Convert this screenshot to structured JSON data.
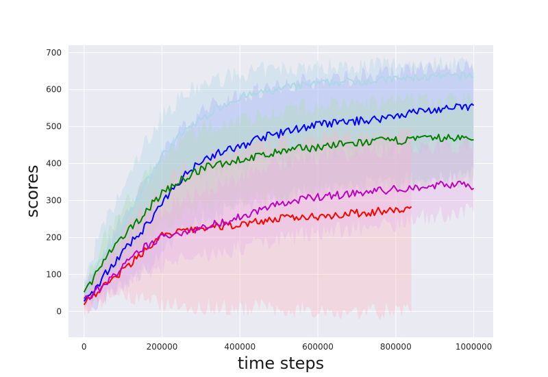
{
  "chart_data": {
    "type": "line",
    "title": "",
    "xlabel": "time steps",
    "ylabel": "scores",
    "xlim": [
      -40000,
      1050000
    ],
    "ylim": [
      -70,
      720
    ],
    "xticks": [
      0,
      200000,
      400000,
      600000,
      800000,
      1000000
    ],
    "yticks": [
      0,
      100,
      200,
      300,
      400,
      500,
      600,
      700
    ],
    "grid": true,
    "legend": "none",
    "background": "#eaeaf2",
    "series": [
      {
        "color": "#add8e6",
        "band": "#add8e6",
        "x": [
          0,
          30000,
          60000,
          100000,
          150000,
          200000,
          250000,
          300000,
          350000,
          400000,
          450000,
          500000,
          550000,
          600000,
          650000,
          700000,
          750000,
          800000,
          850000,
          900000,
          950000,
          1000000
        ],
        "y": [
          40,
          110,
          170,
          230,
          330,
          420,
          480,
          520,
          555,
          580,
          590,
          600,
          610,
          615,
          620,
          622,
          625,
          628,
          632,
          634,
          636,
          638
        ],
        "lower": [
          15,
          45,
          90,
          140,
          230,
          300,
          350,
          370,
          390,
          400,
          410,
          415,
          420,
          425,
          430,
          430,
          435,
          440,
          445,
          450,
          450,
          455
        ],
        "upper": [
          70,
          180,
          250,
          330,
          440,
          530,
          580,
          610,
          630,
          640,
          650,
          655,
          660,
          660,
          665,
          665,
          668,
          670,
          672,
          672,
          675,
          676
        ]
      },
      {
        "color": "#0000ff",
        "band": "#b0b0ff",
        "x": [
          0,
          30000,
          60000,
          100000,
          150000,
          200000,
          250000,
          300000,
          350000,
          400000,
          450000,
          500000,
          550000,
          600000,
          650000,
          700000,
          750000,
          800000,
          850000,
          900000,
          950000,
          1000000
        ],
        "y": [
          30,
          60,
          110,
          160,
          220,
          290,
          360,
          410,
          430,
          445,
          470,
          480,
          495,
          505,
          510,
          515,
          520,
          530,
          540,
          545,
          550,
          555
        ],
        "lower": [
          10,
          20,
          40,
          70,
          110,
          160,
          210,
          250,
          270,
          285,
          300,
          310,
          320,
          330,
          335,
          340,
          345,
          350,
          355,
          360,
          365,
          370
        ],
        "upper": [
          50,
          110,
          180,
          260,
          340,
          420,
          490,
          540,
          570,
          585,
          600,
          610,
          620,
          625,
          630,
          635,
          640,
          645,
          650,
          655,
          658,
          660
        ]
      },
      {
        "color": "#008000",
        "band": "#b0dcb0",
        "x": [
          0,
          30000,
          60000,
          100000,
          150000,
          200000,
          250000,
          300000,
          350000,
          400000,
          450000,
          500000,
          550000,
          600000,
          650000,
          700000,
          750000,
          800000,
          850000,
          900000,
          950000,
          1000000
        ],
        "y": [
          50,
          100,
          150,
          200,
          260,
          320,
          355,
          385,
          400,
          410,
          420,
          430,
          440,
          445,
          450,
          455,
          460,
          462,
          465,
          468,
          470,
          465
        ],
        "lower": [
          25,
          55,
          90,
          130,
          180,
          230,
          260,
          280,
          290,
          300,
          305,
          310,
          315,
          320,
          325,
          330,
          335,
          340,
          345,
          350,
          352,
          355
        ],
        "upper": [
          75,
          150,
          210,
          280,
          350,
          420,
          460,
          490,
          510,
          520,
          530,
          540,
          550,
          555,
          560,
          562,
          565,
          568,
          570,
          572,
          574,
          575
        ]
      },
      {
        "color": "#ff0000",
        "band": "#ffb6c1",
        "x": [
          0,
          30000,
          60000,
          100000,
          150000,
          200000,
          250000,
          300000,
          350000,
          400000,
          450000,
          500000,
          550000,
          600000,
          650000,
          700000,
          750000,
          800000,
          840000
        ],
        "y": [
          25,
          50,
          75,
          110,
          160,
          205,
          215,
          225,
          230,
          235,
          245,
          250,
          255,
          258,
          262,
          265,
          270,
          272,
          280
        ],
        "lower": [
          5,
          15,
          30,
          40,
          30,
          20,
          15,
          15,
          10,
          10,
          10,
          5,
          5,
          5,
          0,
          0,
          0,
          0,
          0
        ],
        "upper": [
          50,
          100,
          150,
          210,
          280,
          340,
          380,
          410,
          430,
          440,
          450,
          455,
          460,
          465,
          470,
          475,
          478,
          480,
          485
        ]
      },
      {
        "color": "#bf00bf",
        "band": "#e8b0e8",
        "x": [
          0,
          30000,
          60000,
          100000,
          150000,
          200000,
          250000,
          300000,
          350000,
          400000,
          450000,
          500000,
          550000,
          600000,
          650000,
          700000,
          750000,
          800000,
          850000,
          900000,
          950000,
          1000000
        ],
        "y": [
          30,
          55,
          80,
          120,
          170,
          200,
          215,
          225,
          240,
          255,
          275,
          290,
          300,
          310,
          315,
          320,
          325,
          330,
          335,
          340,
          345,
          340
        ],
        "lower": [
          10,
          25,
          40,
          65,
          100,
          125,
          140,
          150,
          160,
          170,
          185,
          195,
          205,
          215,
          220,
          225,
          230,
          240,
          250,
          260,
          265,
          270
        ],
        "upper": [
          55,
          95,
          130,
          180,
          240,
          280,
          305,
          320,
          345,
          365,
          385,
          400,
          410,
          420,
          425,
          430,
          435,
          440,
          445,
          445,
          450,
          450
        ]
      }
    ]
  }
}
